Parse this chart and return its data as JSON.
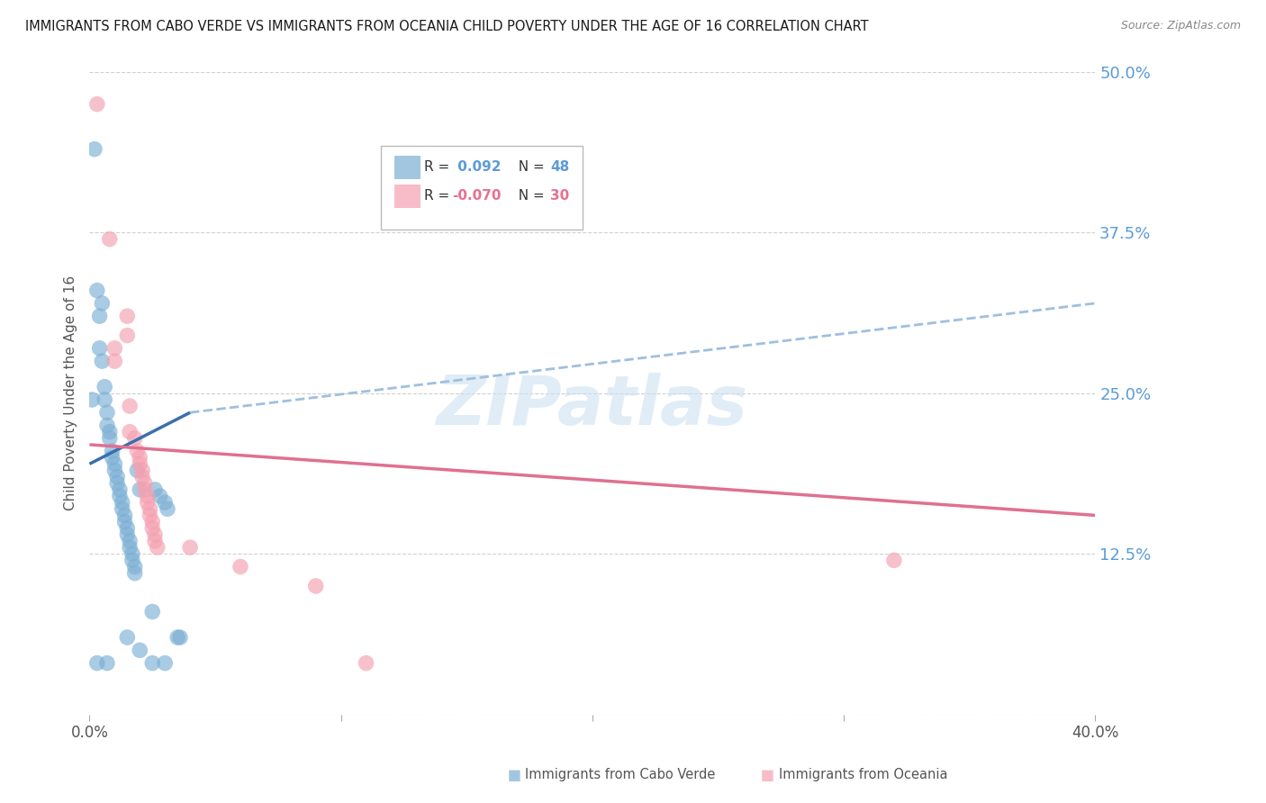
{
  "title": "IMMIGRANTS FROM CABO VERDE VS IMMIGRANTS FROM OCEANIA CHILD POVERTY UNDER THE AGE OF 16 CORRELATION CHART",
  "source": "Source: ZipAtlas.com",
  "ylabel": "Child Poverty Under the Age of 16",
  "xlim": [
    0.0,
    0.4
  ],
  "ylim": [
    0.0,
    0.5
  ],
  "yticks": [
    0.0,
    0.125,
    0.25,
    0.375,
    0.5
  ],
  "ytick_labels": [
    "",
    "12.5%",
    "25.0%",
    "37.5%",
    "50.0%"
  ],
  "xticks": [
    0.0,
    0.1,
    0.2,
    0.3,
    0.4
  ],
  "xtick_labels": [
    "0.0%",
    "",
    "",
    "",
    "40.0%"
  ],
  "cabo_verde_color": "#7bafd4",
  "oceania_color": "#f4a0b0",
  "background_color": "#ffffff",
  "grid_color": "#cccccc",
  "tick_color_right": "#5b9bd5",
  "oceania_line_color": "#e07090",
  "cabo_line_color": "#3a6fad",
  "dashed_line_color": "#9fbfdf",
  "cabo_verde_points": [
    [
      0.001,
      0.245
    ],
    [
      0.002,
      0.44
    ],
    [
      0.003,
      0.33
    ],
    [
      0.004,
      0.31
    ],
    [
      0.004,
      0.285
    ],
    [
      0.005,
      0.275
    ],
    [
      0.005,
      0.32
    ],
    [
      0.006,
      0.255
    ],
    [
      0.006,
      0.245
    ],
    [
      0.007,
      0.235
    ],
    [
      0.007,
      0.225
    ],
    [
      0.008,
      0.22
    ],
    [
      0.008,
      0.215
    ],
    [
      0.009,
      0.205
    ],
    [
      0.009,
      0.2
    ],
    [
      0.01,
      0.195
    ],
    [
      0.01,
      0.19
    ],
    [
      0.011,
      0.185
    ],
    [
      0.011,
      0.18
    ],
    [
      0.012,
      0.175
    ],
    [
      0.012,
      0.17
    ],
    [
      0.013,
      0.165
    ],
    [
      0.013,
      0.16
    ],
    [
      0.014,
      0.155
    ],
    [
      0.014,
      0.15
    ],
    [
      0.015,
      0.145
    ],
    [
      0.015,
      0.14
    ],
    [
      0.016,
      0.135
    ],
    [
      0.016,
      0.13
    ],
    [
      0.017,
      0.125
    ],
    [
      0.017,
      0.12
    ],
    [
      0.018,
      0.115
    ],
    [
      0.018,
      0.11
    ],
    [
      0.019,
      0.19
    ],
    [
      0.02,
      0.175
    ],
    [
      0.025,
      0.08
    ],
    [
      0.026,
      0.175
    ],
    [
      0.028,
      0.17
    ],
    [
      0.03,
      0.165
    ],
    [
      0.031,
      0.16
    ],
    [
      0.035,
      0.06
    ],
    [
      0.036,
      0.06
    ],
    [
      0.015,
      0.06
    ],
    [
      0.02,
      0.05
    ],
    [
      0.025,
      0.04
    ],
    [
      0.03,
      0.04
    ],
    [
      0.007,
      0.04
    ],
    [
      0.003,
      0.04
    ]
  ],
  "oceania_points": [
    [
      0.003,
      0.475
    ],
    [
      0.008,
      0.37
    ],
    [
      0.01,
      0.285
    ],
    [
      0.01,
      0.275
    ],
    [
      0.015,
      0.31
    ],
    [
      0.015,
      0.295
    ],
    [
      0.016,
      0.24
    ],
    [
      0.016,
      0.22
    ],
    [
      0.018,
      0.215
    ],
    [
      0.019,
      0.205
    ],
    [
      0.02,
      0.2
    ],
    [
      0.02,
      0.195
    ],
    [
      0.021,
      0.19
    ],
    [
      0.021,
      0.185
    ],
    [
      0.022,
      0.18
    ],
    [
      0.022,
      0.175
    ],
    [
      0.023,
      0.17
    ],
    [
      0.023,
      0.165
    ],
    [
      0.024,
      0.16
    ],
    [
      0.024,
      0.155
    ],
    [
      0.025,
      0.15
    ],
    [
      0.025,
      0.145
    ],
    [
      0.026,
      0.14
    ],
    [
      0.026,
      0.135
    ],
    [
      0.027,
      0.13
    ],
    [
      0.04,
      0.13
    ],
    [
      0.06,
      0.115
    ],
    [
      0.09,
      0.1
    ],
    [
      0.11,
      0.04
    ],
    [
      0.32,
      0.12
    ]
  ],
  "cabo_verde_line": [
    [
      0.0,
      0.195
    ],
    [
      0.04,
      0.235
    ]
  ],
  "oceania_line": [
    [
      0.0,
      0.21
    ],
    [
      0.4,
      0.155
    ]
  ],
  "dashed_line": [
    [
      0.04,
      0.235
    ],
    [
      0.4,
      0.32
    ]
  ]
}
